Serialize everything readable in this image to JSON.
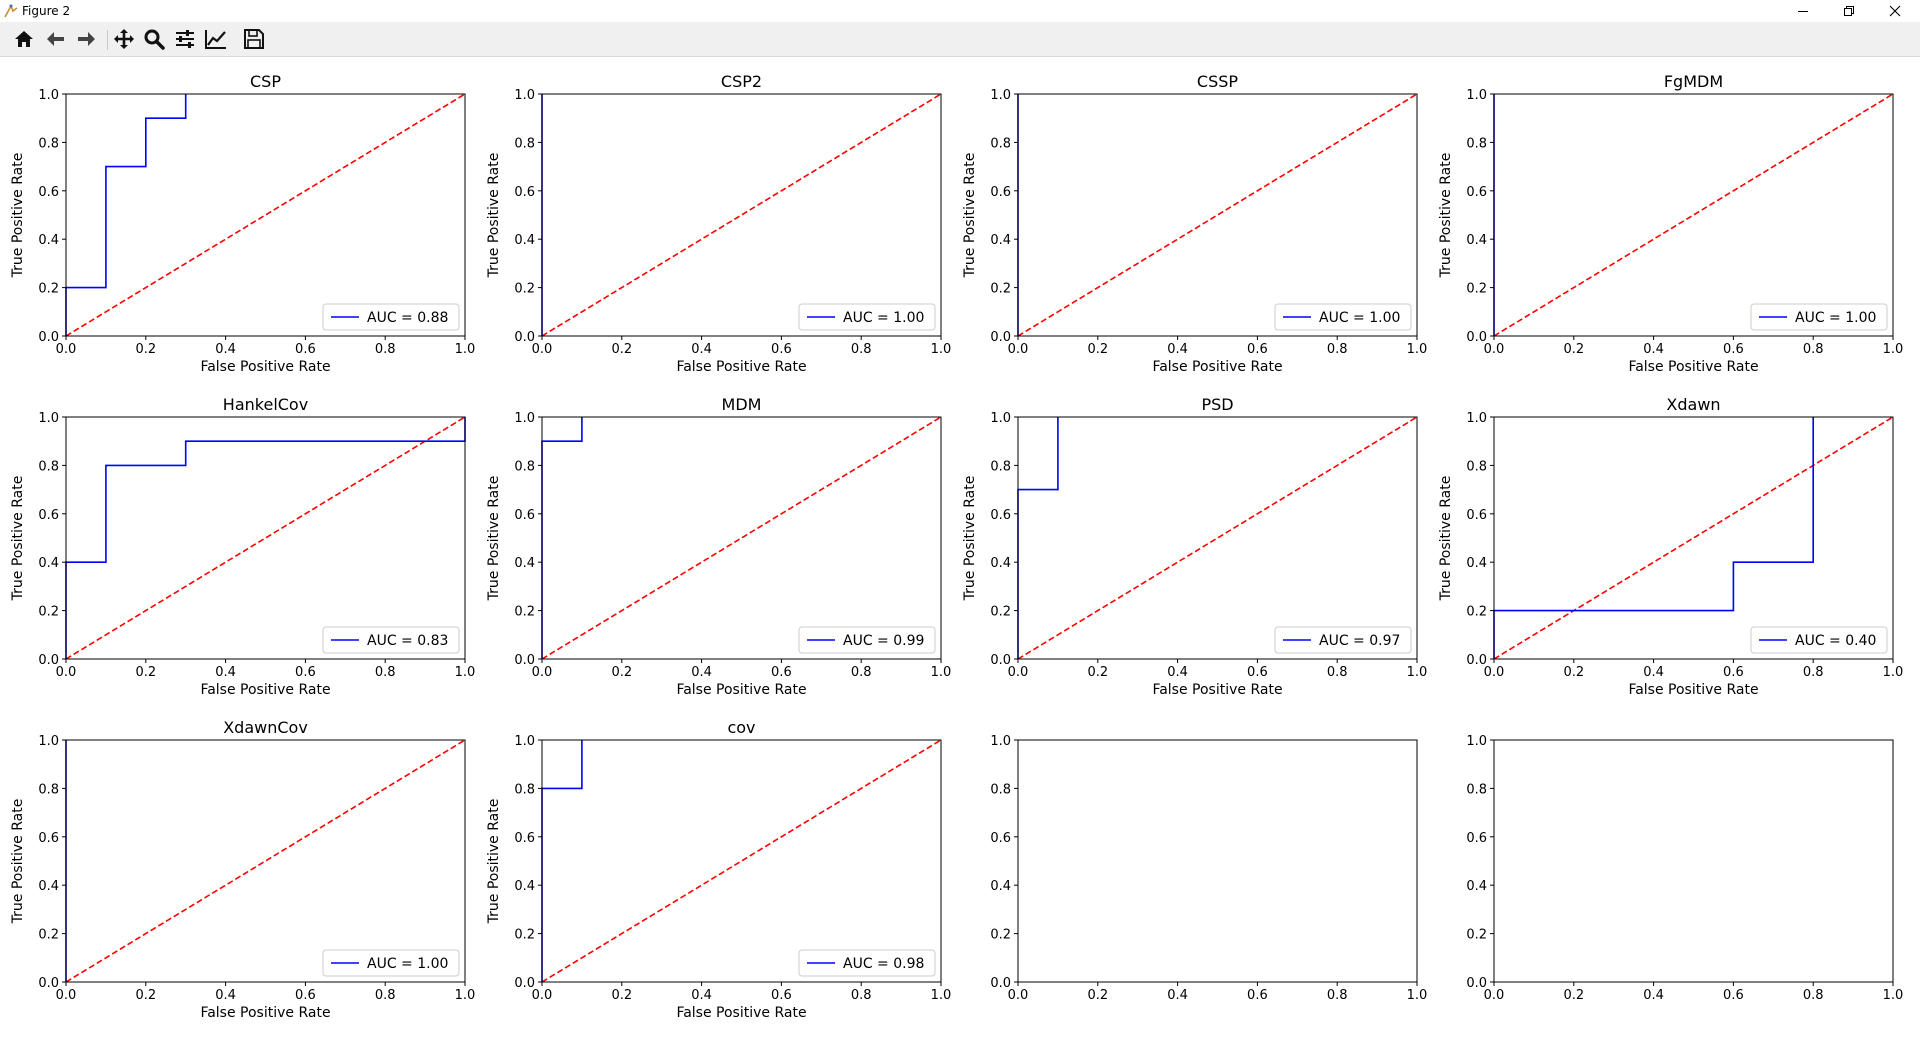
{
  "window": {
    "title": "Figure 2",
    "controls": [
      "minimize",
      "maximize",
      "close"
    ]
  },
  "toolbar": {
    "items": [
      {
        "name": "home",
        "icon": "home-icon"
      },
      {
        "name": "back",
        "icon": "arrow-left-icon"
      },
      {
        "name": "forward",
        "icon": "arrow-right-icon"
      },
      {
        "name": "pan",
        "icon": "move-icon"
      },
      {
        "name": "zoom",
        "icon": "magnifier-icon"
      },
      {
        "name": "configure-subplots",
        "icon": "sliders-icon"
      },
      {
        "name": "edit-axes",
        "icon": "line-chart-icon"
      },
      {
        "name": "save",
        "icon": "floppy-disk-icon"
      }
    ]
  },
  "colors": {
    "roc_line": "#0000ff",
    "chance_line": "#ff0000"
  },
  "chart_data": [
    {
      "type": "line",
      "title": "CSP",
      "xlabel": "False Positive Rate",
      "ylabel": "True Positive Rate",
      "xlim": [
        0,
        1
      ],
      "ylim": [
        0,
        1
      ],
      "xticks": [
        "0.0",
        "0.2",
        "0.4",
        "0.6",
        "0.8",
        "1.0"
      ],
      "yticks": [
        "0.0",
        "0.2",
        "0.4",
        "0.6",
        "0.8",
        "1.0"
      ],
      "series": [
        {
          "name": "AUC = 0.88",
          "x": [
            0,
            0,
            0.1,
            0.1,
            0.2,
            0.2,
            0.3,
            0.3
          ],
          "y": [
            0,
            0.2,
            0.2,
            0.7,
            0.7,
            0.9,
            0.9,
            1.0
          ]
        }
      ],
      "chance_line": true,
      "legend": "lower right"
    },
    {
      "type": "line",
      "title": "CSP2",
      "xlabel": "False Positive Rate",
      "ylabel": "True Positive Rate",
      "xlim": [
        0,
        1
      ],
      "ylim": [
        0,
        1
      ],
      "xticks": [
        "0.0",
        "0.2",
        "0.4",
        "0.6",
        "0.8",
        "1.0"
      ],
      "yticks": [
        "0.0",
        "0.2",
        "0.4",
        "0.6",
        "0.8",
        "1.0"
      ],
      "series": [
        {
          "name": "AUC = 1.00",
          "x": [
            0,
            0,
            0
          ],
          "y": [
            0,
            1.0,
            1.0
          ]
        }
      ],
      "chance_line": true,
      "legend": "lower right"
    },
    {
      "type": "line",
      "title": "CSSP",
      "xlabel": "False Positive Rate",
      "ylabel": "True Positive Rate",
      "xlim": [
        0,
        1
      ],
      "ylim": [
        0,
        1
      ],
      "xticks": [
        "0.0",
        "0.2",
        "0.4",
        "0.6",
        "0.8",
        "1.0"
      ],
      "yticks": [
        "0.0",
        "0.2",
        "0.4",
        "0.6",
        "0.8",
        "1.0"
      ],
      "series": [
        {
          "name": "AUC = 1.00",
          "x": [
            0,
            0,
            0
          ],
          "y": [
            0,
            1.0,
            1.0
          ]
        }
      ],
      "chance_line": true,
      "legend": "lower right"
    },
    {
      "type": "line",
      "title": "FgMDM",
      "xlabel": "False Positive Rate",
      "ylabel": "True Positive Rate",
      "xlim": [
        0,
        1
      ],
      "ylim": [
        0,
        1
      ],
      "xticks": [
        "0.0",
        "0.2",
        "0.4",
        "0.6",
        "0.8",
        "1.0"
      ],
      "yticks": [
        "0.0",
        "0.2",
        "0.4",
        "0.6",
        "0.8",
        "1.0"
      ],
      "series": [
        {
          "name": "AUC = 1.00",
          "x": [
            0,
            0,
            0
          ],
          "y": [
            0,
            1.0,
            1.0
          ]
        }
      ],
      "chance_line": true,
      "legend": "lower right"
    },
    {
      "type": "line",
      "title": "HankelCov",
      "xlabel": "False Positive Rate",
      "ylabel": "True Positive Rate",
      "xlim": [
        0,
        1
      ],
      "ylim": [
        0,
        1
      ],
      "xticks": [
        "0.0",
        "0.2",
        "0.4",
        "0.6",
        "0.8",
        "1.0"
      ],
      "yticks": [
        "0.0",
        "0.2",
        "0.4",
        "0.6",
        "0.8",
        "1.0"
      ],
      "series": [
        {
          "name": "AUC = 0.83",
          "x": [
            0,
            0,
            0.1,
            0.1,
            0.3,
            0.3,
            1.0,
            1.0
          ],
          "y": [
            0,
            0.4,
            0.4,
            0.8,
            0.8,
            0.9,
            0.9,
            1.0
          ]
        }
      ],
      "chance_line": true,
      "legend": "lower right"
    },
    {
      "type": "line",
      "title": "MDM",
      "xlabel": "False Positive Rate",
      "ylabel": "True Positive Rate",
      "xlim": [
        0,
        1
      ],
      "ylim": [
        0,
        1
      ],
      "xticks": [
        "0.0",
        "0.2",
        "0.4",
        "0.6",
        "0.8",
        "1.0"
      ],
      "yticks": [
        "0.0",
        "0.2",
        "0.4",
        "0.6",
        "0.8",
        "1.0"
      ],
      "series": [
        {
          "name": "AUC = 0.99",
          "x": [
            0,
            0,
            0.1,
            0.1
          ],
          "y": [
            0,
            0.9,
            0.9,
            1.0
          ]
        }
      ],
      "chance_line": true,
      "legend": "lower right"
    },
    {
      "type": "line",
      "title": "PSD",
      "xlabel": "False Positive Rate",
      "ylabel": "True Positive Rate",
      "xlim": [
        0,
        1
      ],
      "ylim": [
        0,
        1
      ],
      "xticks": [
        "0.0",
        "0.2",
        "0.4",
        "0.6",
        "0.8",
        "1.0"
      ],
      "yticks": [
        "0.0",
        "0.2",
        "0.4",
        "0.6",
        "0.8",
        "1.0"
      ],
      "series": [
        {
          "name": "AUC = 0.97",
          "x": [
            0,
            0,
            0.1,
            0.1
          ],
          "y": [
            0,
            0.7,
            0.7,
            1.0
          ]
        }
      ],
      "chance_line": true,
      "legend": "lower right"
    },
    {
      "type": "line",
      "title": "Xdawn",
      "xlabel": "False Positive Rate",
      "ylabel": "True Positive Rate",
      "xlim": [
        0,
        1
      ],
      "ylim": [
        0,
        1
      ],
      "xticks": [
        "0.0",
        "0.2",
        "0.4",
        "0.6",
        "0.8",
        "1.0"
      ],
      "yticks": [
        "0.0",
        "0.2",
        "0.4",
        "0.6",
        "0.8",
        "1.0"
      ],
      "series": [
        {
          "name": "AUC = 0.40",
          "x": [
            0,
            0,
            0.6,
            0.6,
            0.8,
            0.8
          ],
          "y": [
            0,
            0.2,
            0.2,
            0.4,
            0.4,
            1.0
          ]
        }
      ],
      "chance_line": true,
      "legend": "lower right"
    },
    {
      "type": "line",
      "title": "XdawnCov",
      "xlabel": "False Positive Rate",
      "ylabel": "True Positive Rate",
      "xlim": [
        0,
        1
      ],
      "ylim": [
        0,
        1
      ],
      "xticks": [
        "0.0",
        "0.2",
        "0.4",
        "0.6",
        "0.8",
        "1.0"
      ],
      "yticks": [
        "0.0",
        "0.2",
        "0.4",
        "0.6",
        "0.8",
        "1.0"
      ],
      "series": [
        {
          "name": "AUC = 1.00",
          "x": [
            0,
            0,
            0
          ],
          "y": [
            0,
            1.0,
            1.0
          ]
        }
      ],
      "chance_line": true,
      "legend": "lower right"
    },
    {
      "type": "line",
      "title": "cov",
      "xlabel": "False Positive Rate",
      "ylabel": "True Positive Rate",
      "xlim": [
        0,
        1
      ],
      "ylim": [
        0,
        1
      ],
      "xticks": [
        "0.0",
        "0.2",
        "0.4",
        "0.6",
        "0.8",
        "1.0"
      ],
      "yticks": [
        "0.0",
        "0.2",
        "0.4",
        "0.6",
        "0.8",
        "1.0"
      ],
      "series": [
        {
          "name": "AUC = 0.98",
          "x": [
            0,
            0,
            0.1,
            0.1
          ],
          "y": [
            0,
            0.8,
            0.8,
            1.0
          ]
        }
      ],
      "chance_line": true,
      "legend": "lower right"
    },
    {
      "type": "line",
      "title": "",
      "xlabel": "",
      "ylabel": "",
      "xlim": [
        0,
        1
      ],
      "ylim": [
        0,
        1
      ],
      "xticks": [
        "0.0",
        "0.2",
        "0.4",
        "0.6",
        "0.8",
        "1.0"
      ],
      "yticks": [
        "0.0",
        "0.2",
        "0.4",
        "0.6",
        "0.8",
        "1.0"
      ],
      "series": [],
      "chance_line": false,
      "legend": "none"
    },
    {
      "type": "line",
      "title": "",
      "xlabel": "",
      "ylabel": "",
      "xlim": [
        0,
        1
      ],
      "ylim": [
        0,
        1
      ],
      "xticks": [
        "0.0",
        "0.2",
        "0.4",
        "0.6",
        "0.8",
        "1.0"
      ],
      "yticks": [
        "0.0",
        "0.2",
        "0.4",
        "0.6",
        "0.8",
        "1.0"
      ],
      "series": [],
      "chance_line": false,
      "legend": "none"
    }
  ]
}
